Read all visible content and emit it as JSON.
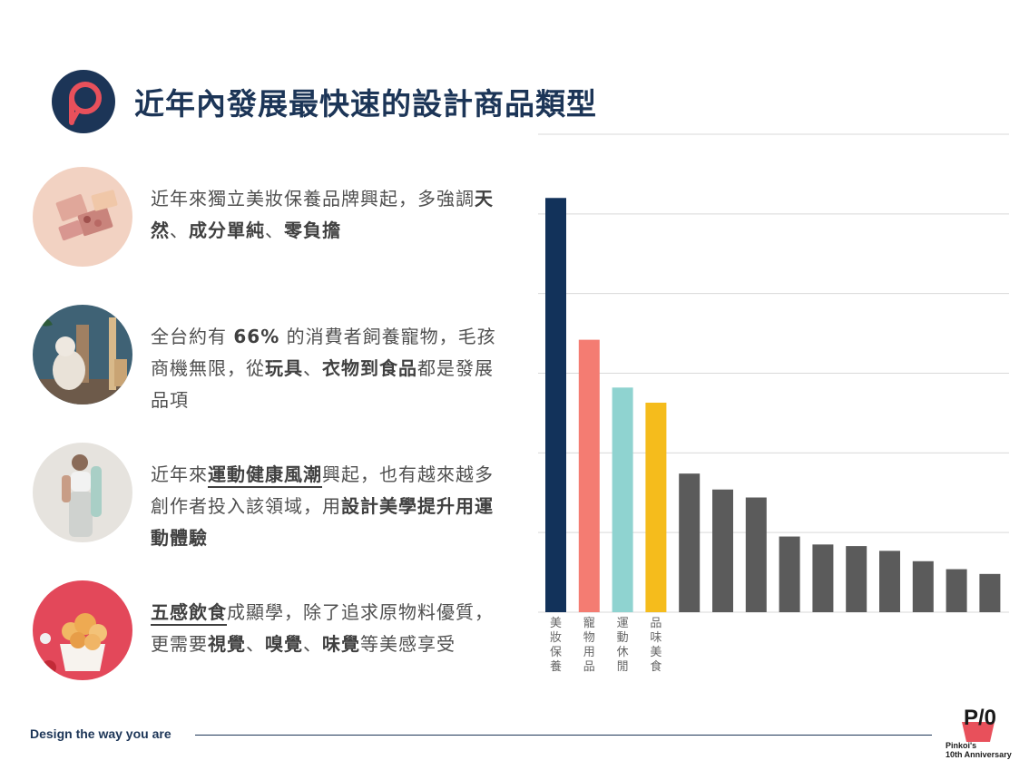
{
  "header": {
    "title": "近年內發展最快速的設計商品類型"
  },
  "items": [
    {
      "segments": [
        {
          "t": "近年來獨立美妝保養品牌興起，多強調",
          "b": false
        },
        {
          "t": "天然",
          "b": true
        },
        {
          "t": "、",
          "b": false
        },
        {
          "t": "成分單純",
          "b": true
        },
        {
          "t": "、",
          "b": false
        },
        {
          "t": "零負擔",
          "b": true
        }
      ]
    },
    {
      "segments": [
        {
          "t": "全台約有 ",
          "b": false
        },
        {
          "t": "66%",
          "b": true
        },
        {
          "t": " 的消費者飼養寵物，毛孩商機無限，從",
          "b": false
        },
        {
          "t": "玩具",
          "b": true
        },
        {
          "t": "、",
          "b": false
        },
        {
          "t": "衣物到食品",
          "b": true
        },
        {
          "t": "都是發展品項",
          "b": false
        }
      ]
    },
    {
      "segments": [
        {
          "t": "近年來",
          "b": false
        },
        {
          "t": "運動健康風潮",
          "b": true,
          "u": true
        },
        {
          "t": "興起，也有越來越多創作者投入該領域，用",
          "b": false
        },
        {
          "t": "設計美學提升用運動體驗",
          "b": true
        }
      ]
    },
    {
      "segments": [
        {
          "t": "五感飲食",
          "b": true,
          "u": true
        },
        {
          "t": "成顯學，除了追求原物料優質，更需要",
          "b": false
        },
        {
          "t": "視覺",
          "b": true
        },
        {
          "t": "、",
          "b": false
        },
        {
          "t": "嗅覺",
          "b": true
        },
        {
          "t": "、",
          "b": false
        },
        {
          "t": "味覺",
          "b": true
        },
        {
          "t": "等美感享受",
          "b": false
        }
      ]
    }
  ],
  "chart_data": {
    "type": "bar",
    "categories": [
      "美妝保養",
      "寵物用品",
      "運動休閒",
      "品味美食",
      "",
      "",
      "",
      "",
      "",
      "",
      "",
      "",
      "",
      ""
    ],
    "values": [
      5.2,
      3.42,
      2.82,
      2.63,
      1.74,
      1.54,
      1.44,
      0.95,
      0.85,
      0.83,
      0.77,
      0.64,
      0.54,
      0.48
    ],
    "colors": [
      "#12325a",
      "#f47c72",
      "#8fd3d0",
      "#f5bc1c",
      "#5b5b5b",
      "#5b5b5b",
      "#5b5b5b",
      "#5b5b5b",
      "#5b5b5b",
      "#5b5b5b",
      "#5b5b5b",
      "#5b5b5b",
      "#5b5b5b",
      "#5b5b5b"
    ],
    "ylim": [
      0,
      6
    ],
    "grid": true,
    "xlabel": "",
    "ylabel": ""
  },
  "footer": {
    "tagline": "Design the way you are",
    "badge_mark": "P/0",
    "badge_line1": "Pinkoi's",
    "badge_line2": "10th Anniversary"
  },
  "colors": {
    "brand_navy": "#1c3557",
    "brand_red": "#e8505b"
  }
}
